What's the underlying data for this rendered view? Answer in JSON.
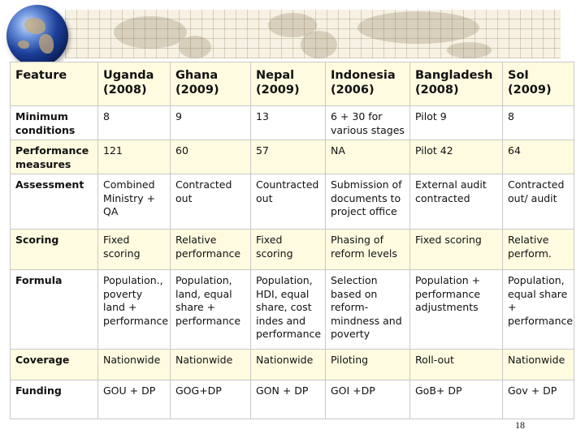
{
  "table": {
    "headers": [
      "Feature",
      "Uganda (2008)",
      "Ghana (2009)",
      "Nepal (2009)",
      "Indonesia (2006)",
      "Bangladesh (2008)",
      "SoI (2009)"
    ],
    "rows": [
      [
        "Minimum conditions",
        "8",
        "9",
        "13",
        "6 + 30 for various stages",
        "Pilot 9",
        "8"
      ],
      [
        "Performance measures",
        "121",
        "60",
        "57",
        "NA",
        "Pilot 42",
        "64"
      ],
      [
        "Assessment",
        "Combined Ministry + QA",
        "Contracted out",
        "Countracted out",
        "Submission of documents to project office",
        "External audit contracted",
        "Contracted out/ audit"
      ],
      [
        "Scoring",
        "Fixed scoring",
        "Relative performance",
        "Fixed scoring",
        "Phasing of reform levels",
        "Fixed scoring",
        "Relative perform."
      ],
      [
        "Formula",
        "Population., poverty land + performance",
        "Population, land, equal share + performance",
        "Population, HDI, equal share, cost indes and performance",
        "Selection based on reform-mindness and poverty",
        "Population + performance adjustments",
        "Population, equal share + performance"
      ],
      [
        "Coverage",
        "Nationwide",
        "Nationwide",
        "Nationwide",
        "Piloting",
        "Roll-out",
        "Nationwide"
      ],
      [
        "Funding",
        "GOU + DP",
        "GOG+DP",
        "GON + DP",
        "GOI +DP",
        "GoB+ DP",
        "Gov + DP"
      ]
    ]
  },
  "footer": {
    "page_number": "18"
  },
  "decoration": {
    "globe_icon": "globe-icon",
    "banner": "world-map-banner"
  },
  "colors": {
    "header_band": "#fffbe0",
    "grid_line": "#c9c9c9"
  }
}
